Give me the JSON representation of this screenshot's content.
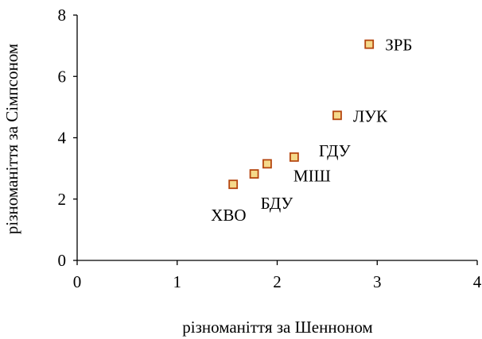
{
  "chart_data": {
    "type": "scatter",
    "xlabel": "різноманіття за Шенноном",
    "ylabel": "різноманіття за Сімпсоном",
    "xlim": [
      0,
      4
    ],
    "ylim": [
      0,
      8
    ],
    "x_ticks": [
      "0",
      "1",
      "2",
      "3",
      "4"
    ],
    "y_ticks": [
      "0",
      "2",
      "4",
      "6",
      "8"
    ],
    "grid": false,
    "marker": "square",
    "marker_stroke": "#b5460f",
    "marker_fill": "#f5d98a",
    "points": [
      {
        "label": "ХВО",
        "x": 1.56,
        "y": 2.48,
        "label_pos": "below-left"
      },
      {
        "label": "БДУ",
        "x": 1.77,
        "y": 2.82,
        "label_pos": "below"
      },
      {
        "label": "МІШ",
        "x": 1.9,
        "y": 3.15,
        "label_pos": "below-right"
      },
      {
        "label": "ГДУ",
        "x": 2.17,
        "y": 3.37,
        "label_pos": "above-right"
      },
      {
        "label": "ЛУК",
        "x": 2.6,
        "y": 4.73,
        "label_pos": "right"
      },
      {
        "label": "ЗРБ",
        "x": 2.92,
        "y": 7.05,
        "label_pos": "right"
      }
    ]
  }
}
